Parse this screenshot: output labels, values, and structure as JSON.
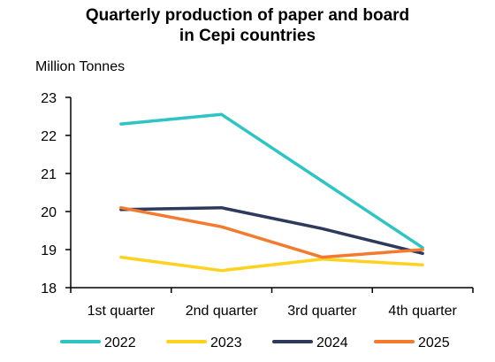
{
  "chart_data": {
    "type": "line",
    "title_lines": [
      "Quarterly production of paper and board",
      "in Cepi countries"
    ],
    "ylabel": "Million Tonnes",
    "xlabel": "",
    "categories": [
      "1st quarter",
      "2nd quarter",
      "3rd quarter",
      "4th quarter"
    ],
    "ylim": [
      18,
      23
    ],
    "yticks": [
      18,
      19,
      20,
      21,
      22,
      23
    ],
    "grid": false,
    "legend_position": "bottom",
    "series": [
      {
        "name": "2022",
        "color": "#2EC4C4",
        "values": [
          22.3,
          22.55,
          null,
          19.05
        ]
      },
      {
        "name": "2023",
        "color": "#FFD21F",
        "values": [
          18.8,
          18.45,
          18.75,
          18.6
        ]
      },
      {
        "name": "2024",
        "color": "#2E3A5C",
        "values": [
          20.05,
          20.1,
          19.55,
          18.9
        ]
      },
      {
        "name": "2025",
        "color": "#F47B2E",
        "values": [
          20.1,
          19.6,
          18.8,
          19.0
        ]
      }
    ]
  }
}
